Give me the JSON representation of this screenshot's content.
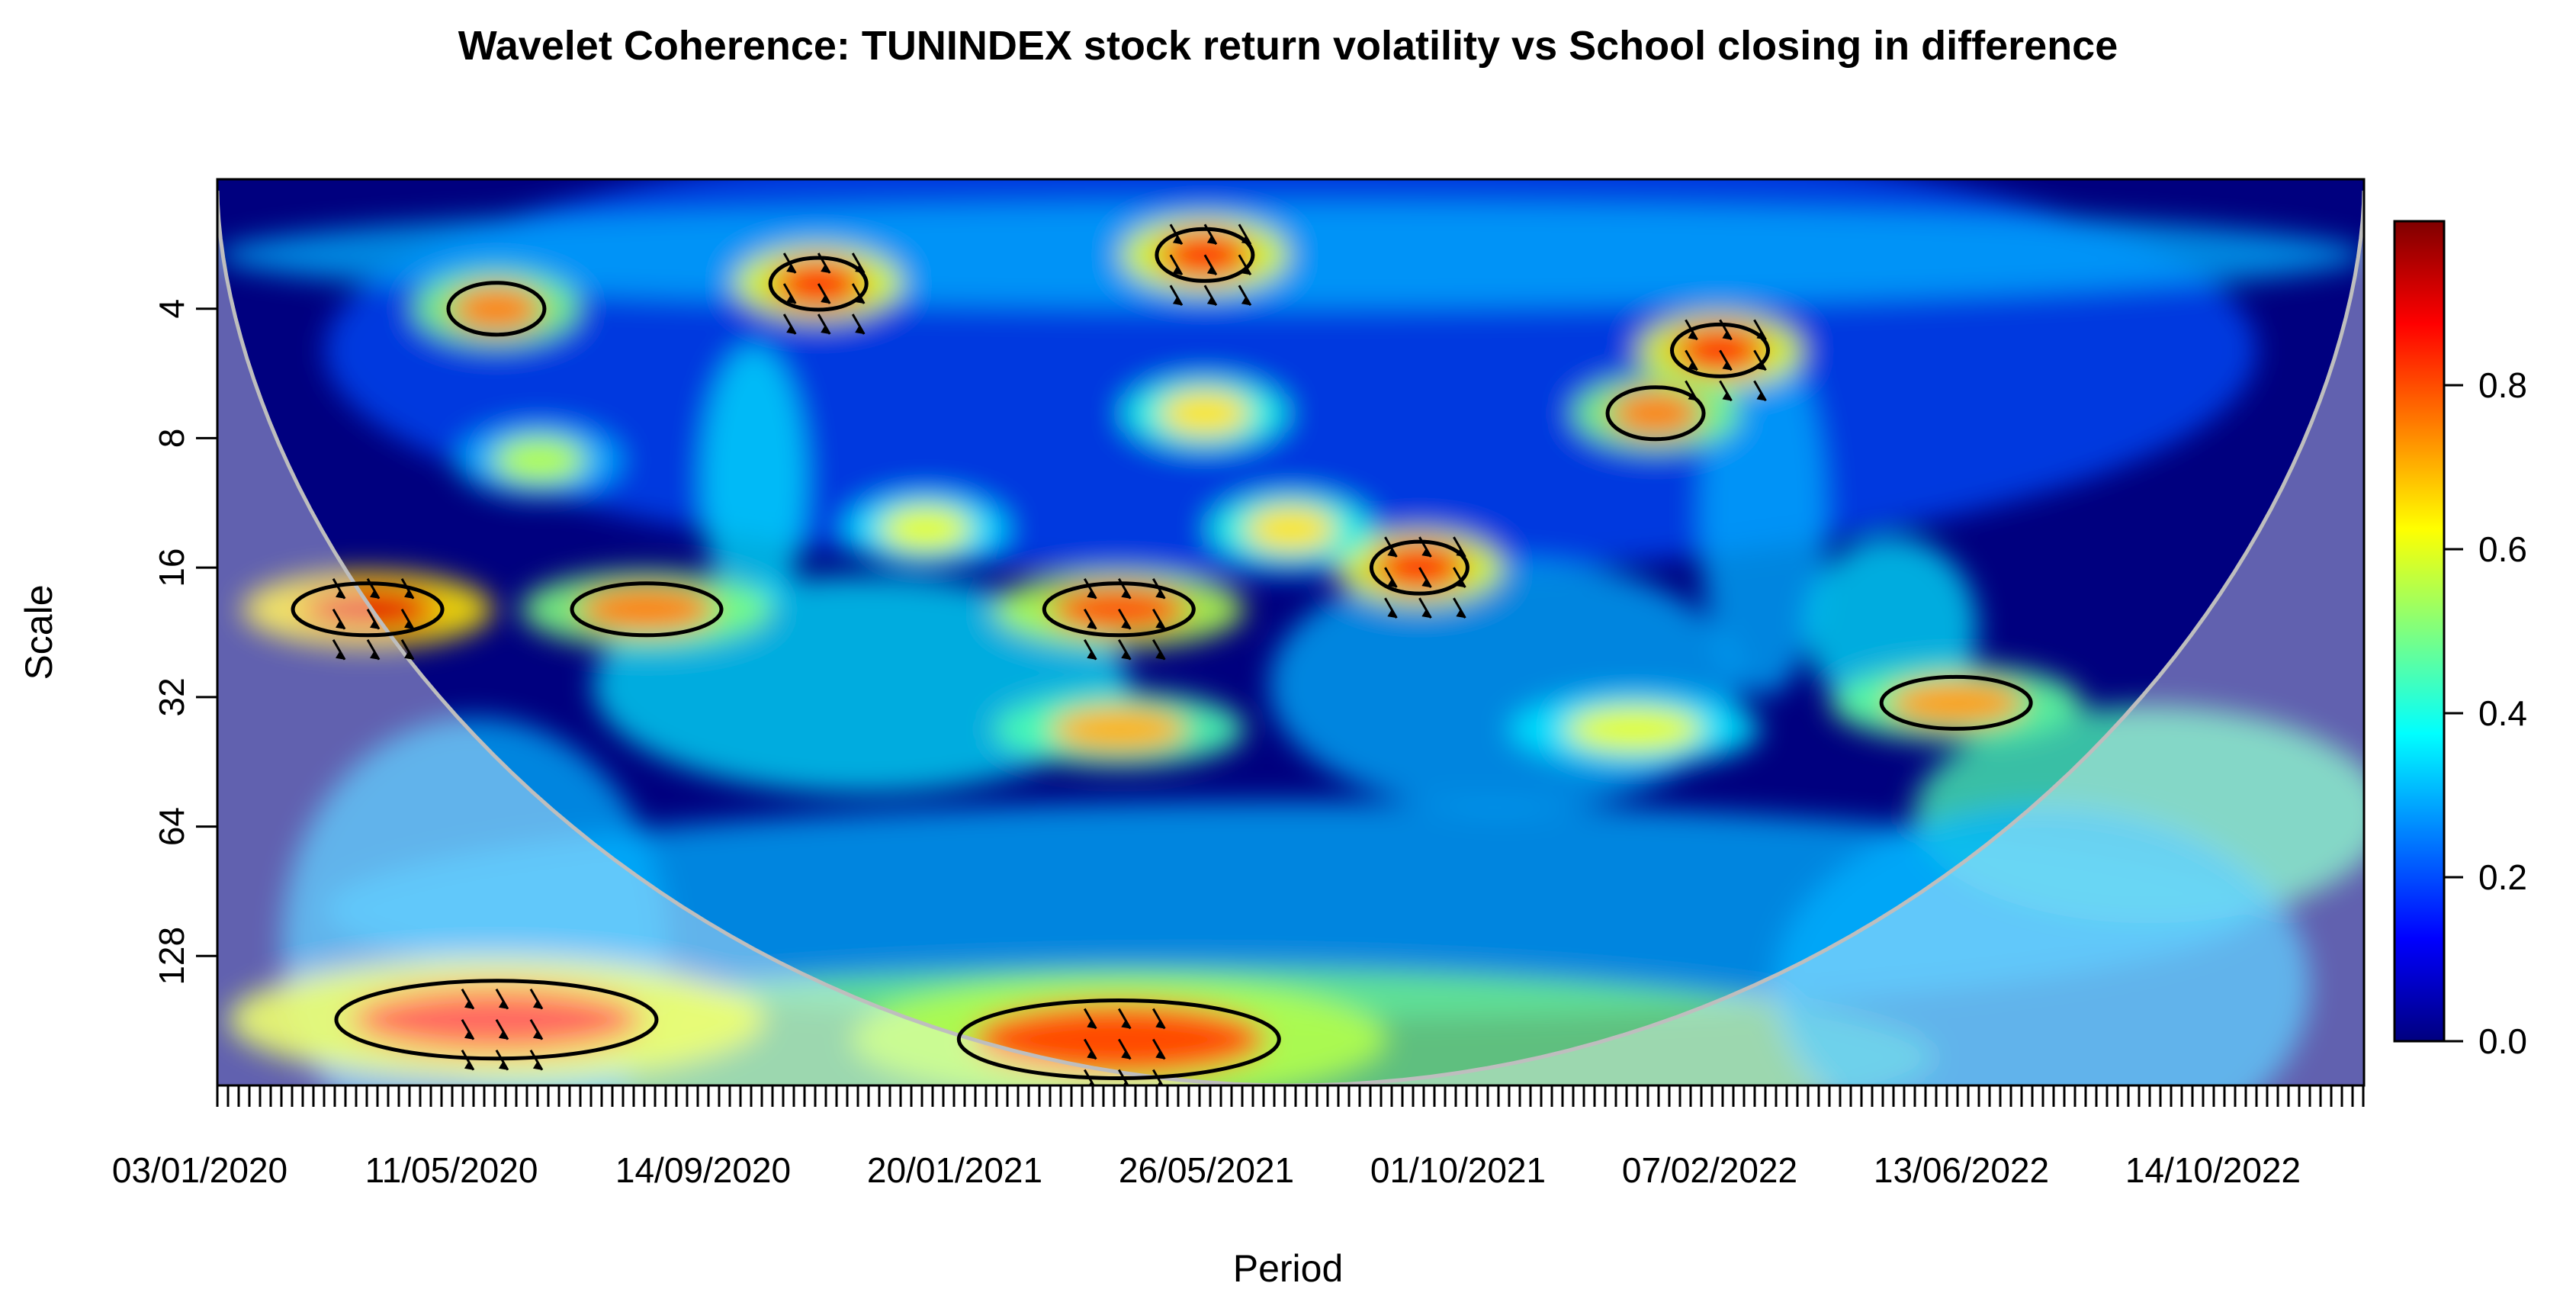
{
  "chart_data": {
    "type": "heatmap",
    "title": "Wavelet Coherence: TUNINDEX stock return volatility vs School closing in difference",
    "xlabel": "Period",
    "ylabel": "Scale",
    "x_tick_labels": [
      "03/01/2020",
      "11/05/2020",
      "14/09/2020",
      "20/01/2021",
      "26/05/2021",
      "01/10/2021",
      "07/02/2022",
      "13/06/2022",
      "14/10/2022"
    ],
    "y_scale": "log2",
    "y_tick_labels": [
      "4",
      "8",
      "16",
      "32",
      "64",
      "128"
    ],
    "y_tick_values": [
      4,
      8,
      16,
      32,
      64,
      128
    ],
    "y_range": [
      2,
      256
    ],
    "colorbar": {
      "min": 0,
      "max": 1,
      "tick_values": [
        0.0,
        0.2,
        0.4,
        0.6,
        0.8
      ],
      "tick_labels": [
        "0.0",
        "0.2",
        "0.4",
        "0.6",
        "0.8"
      ],
      "colors": [
        "#00007F",
        "#0000FF",
        "#007FFF",
        "#00FFFF",
        "#7FFF7F",
        "#FFFF00",
        "#FF7F00",
        "#FF0000",
        "#7F0000"
      ]
    },
    "high_coherence_regions": [
      {
        "period_frac": 0.07,
        "scale": 20,
        "coherence": 0.9
      },
      {
        "period_frac": 0.13,
        "scale": 180,
        "coherence": 0.85
      },
      {
        "period_frac": 0.42,
        "scale": 200,
        "coherence": 0.8
      },
      {
        "period_frac": 0.2,
        "scale": 20,
        "coherence": 0.75
      },
      {
        "period_frac": 0.42,
        "scale": 20,
        "coherence": 0.8
      },
      {
        "period_frac": 0.56,
        "scale": 16,
        "coherence": 0.85
      },
      {
        "period_frac": 0.42,
        "scale": 38,
        "coherence": 0.7
      },
      {
        "period_frac": 0.81,
        "scale": 33,
        "coherence": 0.72
      },
      {
        "period_frac": 0.7,
        "scale": 5,
        "coherence": 0.85
      },
      {
        "period_frac": 0.67,
        "scale": 7,
        "coherence": 0.75
      },
      {
        "period_frac": 0.13,
        "scale": 4,
        "coherence": 0.75
      },
      {
        "period_frac": 0.28,
        "scale": 3.5,
        "coherence": 0.85
      },
      {
        "period_frac": 0.46,
        "scale": 3,
        "coherence": 0.85
      },
      {
        "period_frac": 0.46,
        "scale": 7,
        "coherence": 0.65
      },
      {
        "period_frac": 0.5,
        "scale": 13,
        "coherence": 0.65
      },
      {
        "period_frac": 0.33,
        "scale": 13,
        "coherence": 0.6
      },
      {
        "period_frac": 0.66,
        "scale": 38,
        "coherence": 0.6
      },
      {
        "period_frac": 0.15,
        "scale": 9,
        "coherence": 0.55
      }
    ],
    "colors": {
      "plot_border": "#000000",
      "cone_of_influence": "#BEBEBE",
      "outside_cone_overlay": "#FFFFFF",
      "significance_contour": "#000000",
      "phase_arrows": "#000000"
    }
  }
}
